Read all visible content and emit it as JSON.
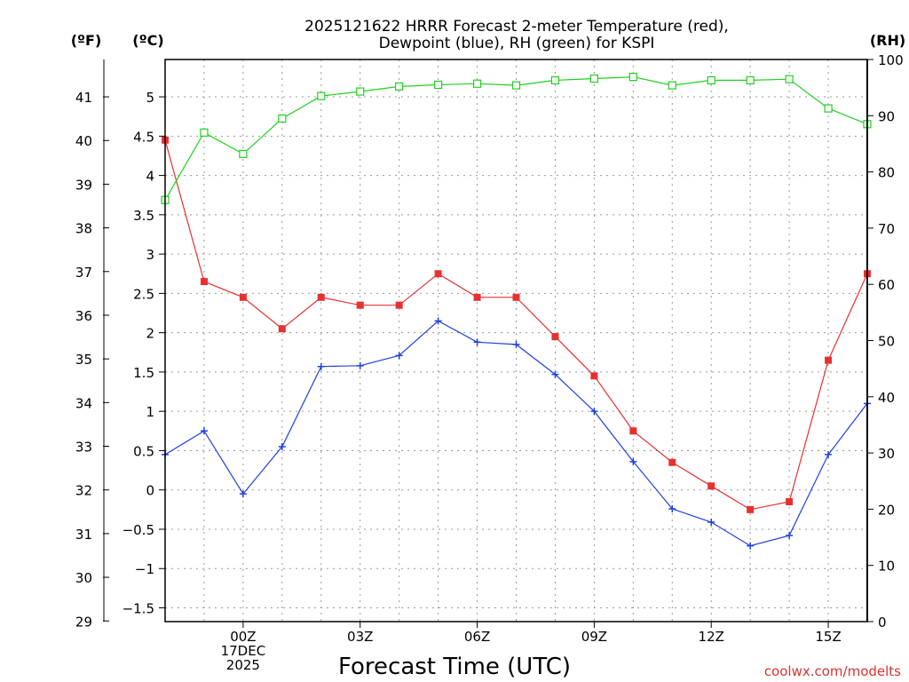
{
  "chart_data": {
    "type": "line",
    "title": [
      "2025121622 HRRR Forecast 2-meter Temperature (red),",
      "Dewpoint (blue), RH (green) for KSPI"
    ],
    "xlabel": "Forecast Time (UTC)",
    "credit": "coolwx.com/modelts",
    "axis_units": {
      "fahrenheit": "(ºF)",
      "celsius": "(ºC)",
      "rh": "(RH)"
    },
    "hours": [
      -2,
      -1,
      0,
      1,
      2,
      3,
      4,
      5,
      6,
      7,
      8,
      9,
      10,
      11,
      12,
      13,
      14,
      15,
      16
    ],
    "x_ticks": [
      {
        "hour": 0,
        "lines": [
          "00Z",
          "17DEC",
          "2025"
        ]
      },
      {
        "hour": 3,
        "lines": [
          "03Z"
        ]
      },
      {
        "hour": 6,
        "lines": [
          "06Z"
        ]
      },
      {
        "hour": 9,
        "lines": [
          "09Z"
        ]
      },
      {
        "hour": 12,
        "lines": [
          "12Z"
        ]
      },
      {
        "hour": 15,
        "lines": [
          "15Z"
        ]
      }
    ],
    "xlim": [
      -2,
      16
    ],
    "celsius_lim": [
      -1.675,
      5.475
    ],
    "fahrenheit_ticks": [
      "29",
      "30",
      "31",
      "32",
      "33",
      "34",
      "35",
      "36",
      "37",
      "38",
      "39",
      "40",
      "41"
    ],
    "celsius_ticks": [
      "−1.5",
      "−1",
      "−0.5",
      "0",
      "0.5",
      "1",
      "1.5",
      "2",
      "2.5",
      "3",
      "3.5",
      "4",
      "4.5",
      "5"
    ],
    "rh_lim": [
      0,
      100
    ],
    "rh_ticks": [
      "0",
      "10",
      "20",
      "30",
      "40",
      "50",
      "60",
      "70",
      "80",
      "90",
      "100"
    ],
    "series": [
      {
        "name": "Temperature",
        "units": "C",
        "color": "#e83030",
        "marker": "filled-square",
        "values": [
          4.45,
          2.65,
          2.45,
          2.05,
          2.45,
          2.35,
          2.35,
          2.75,
          2.45,
          2.45,
          1.95,
          1.45,
          0.75,
          0.35,
          0.05,
          -0.25,
          -0.15,
          1.65,
          2.75
        ]
      },
      {
        "name": "Dewpoint",
        "units": "C",
        "color": "#2040e0",
        "marker": "plus",
        "values": [
          0.45,
          0.75,
          -0.05,
          0.55,
          1.57,
          1.58,
          1.71,
          2.15,
          1.88,
          1.85,
          1.47,
          1.0,
          0.36,
          -0.24,
          -0.41,
          -0.71,
          -0.58,
          0.45,
          1.1
        ]
      },
      {
        "name": "RH",
        "units": "%",
        "color": "#20d020",
        "marker": "open-square",
        "values": [
          75.0,
          87.0,
          83.2,
          89.5,
          93.5,
          94.3,
          95.2,
          95.5,
          95.7,
          95.4,
          96.3,
          96.6,
          96.9,
          95.4,
          96.3,
          96.3,
          96.5,
          91.3,
          88.5
        ]
      }
    ]
  }
}
